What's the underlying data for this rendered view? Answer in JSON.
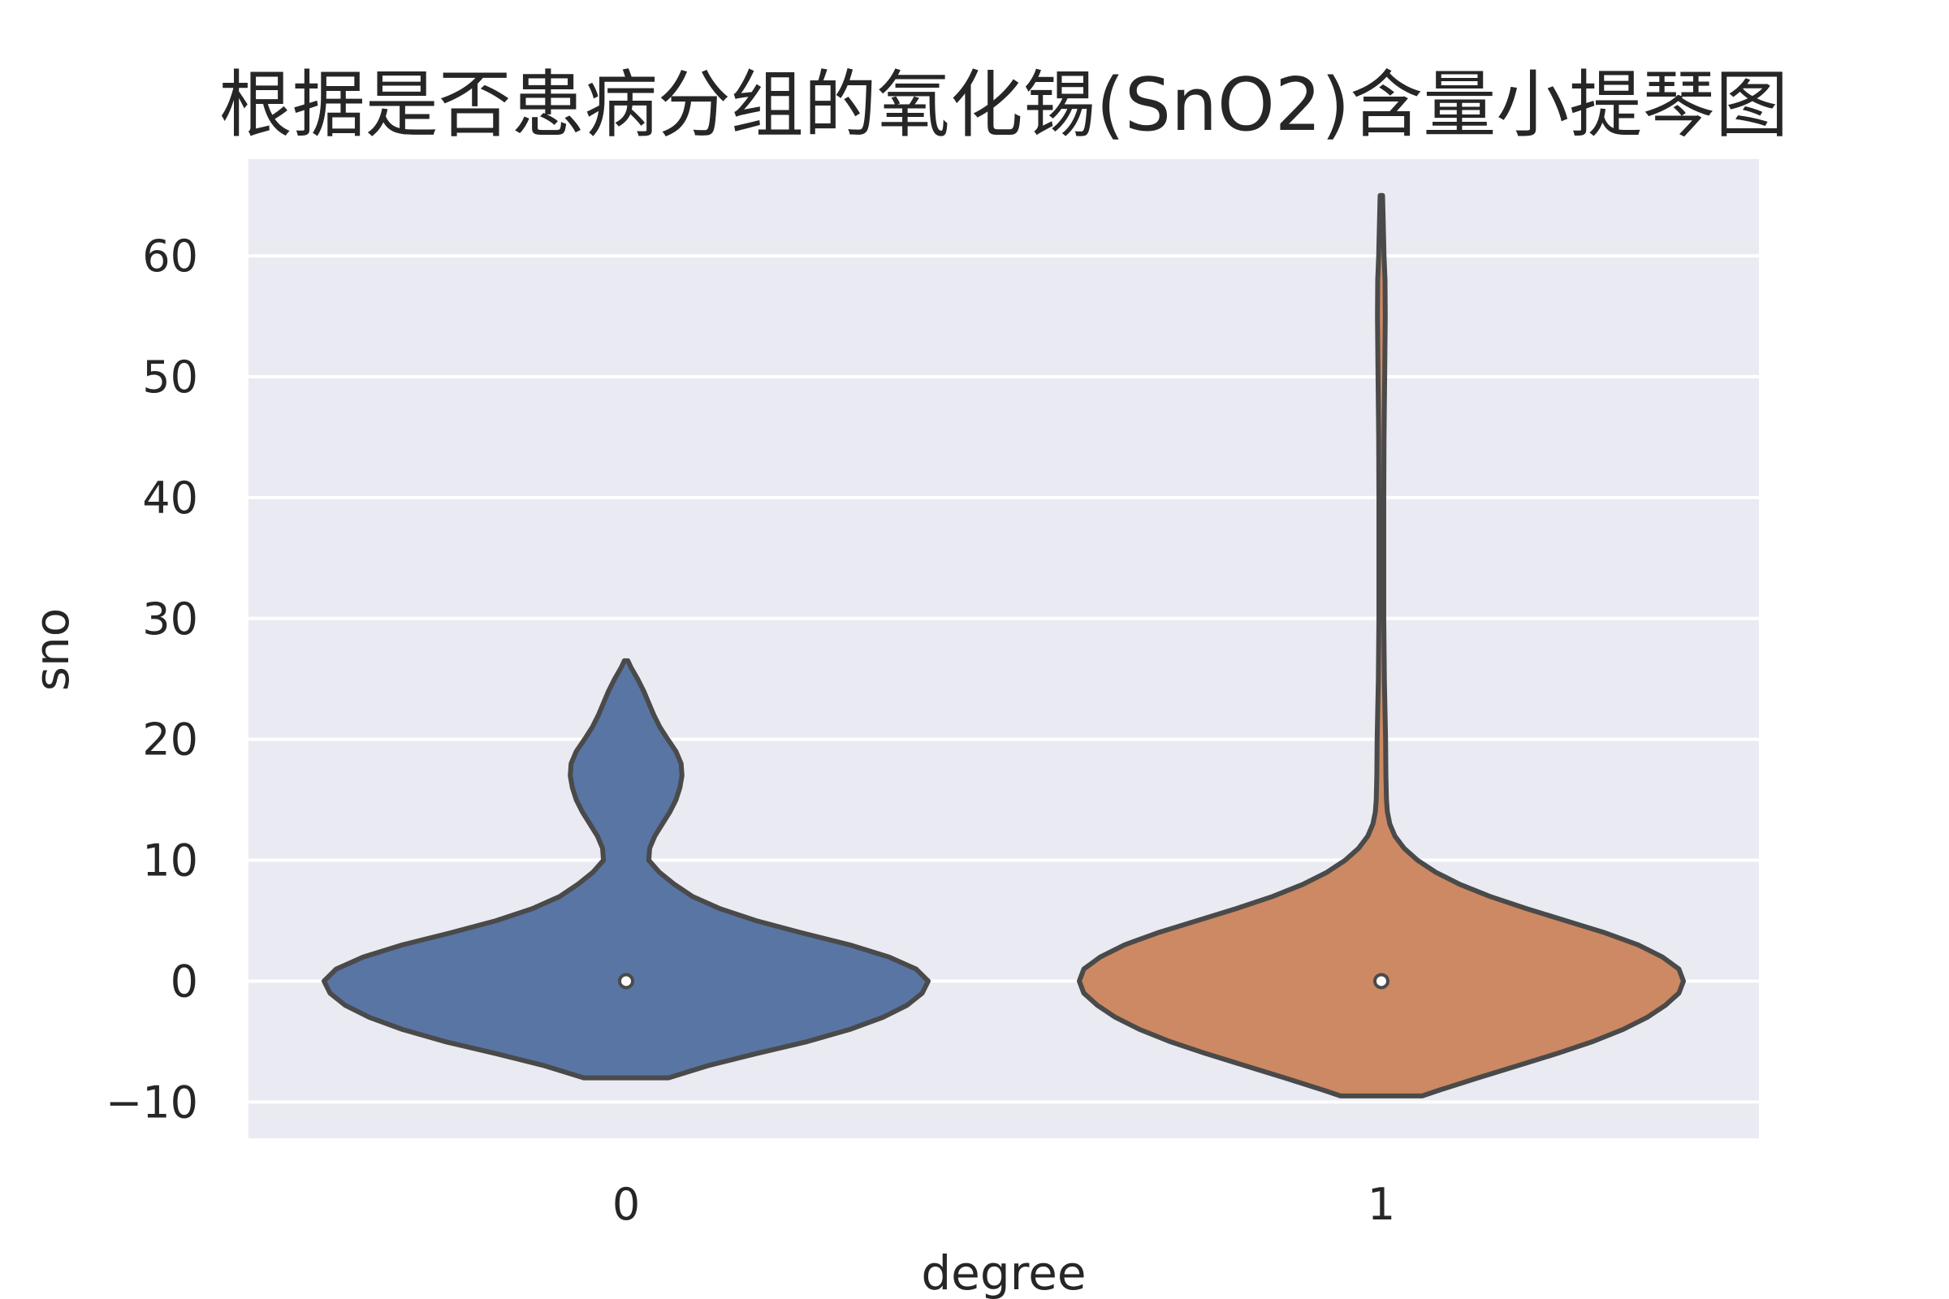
{
  "chart_data": {
    "type": "violin",
    "title": "根据是否患病分组的氧化锡(SnO2)含量小提琴图",
    "xlabel": "degree",
    "ylabel": "sno",
    "categories": [
      "0",
      "1"
    ],
    "ylim": [
      -13,
      68
    ],
    "yticks": [
      -10,
      0,
      10,
      20,
      30,
      40,
      50,
      60
    ],
    "ytick_labels": [
      "−10",
      "0",
      "10",
      "20",
      "30",
      "40",
      "50",
      "60"
    ],
    "grid": true,
    "colors": {
      "background": "#eaeaf2",
      "grid": "#ffffff",
      "outline": "#4a4a4a",
      "series": [
        "#5975a4",
        "#cc8963"
      ]
    },
    "violins": [
      {
        "category": "0",
        "median": 0,
        "min": -8,
        "max": 26.5,
        "density_profile": [
          [
            -8,
            0.14
          ],
          [
            -7,
            0.27
          ],
          [
            -6,
            0.43
          ],
          [
            -5,
            0.6
          ],
          [
            -4,
            0.74
          ],
          [
            -3,
            0.85
          ],
          [
            -2,
            0.93
          ],
          [
            -1,
            0.98
          ],
          [
            0,
            1.0
          ],
          [
            1,
            0.96
          ],
          [
            2,
            0.87
          ],
          [
            3,
            0.74
          ],
          [
            4,
            0.58
          ],
          [
            5,
            0.43
          ],
          [
            6,
            0.31
          ],
          [
            7,
            0.22
          ],
          [
            8,
            0.16
          ],
          [
            9,
            0.11
          ],
          [
            10,
            0.075
          ],
          [
            11,
            0.078
          ],
          [
            12,
            0.095
          ],
          [
            13,
            0.12
          ],
          [
            14,
            0.145
          ],
          [
            15,
            0.165
          ],
          [
            16,
            0.178
          ],
          [
            17,
            0.185
          ],
          [
            18,
            0.182
          ],
          [
            19,
            0.165
          ],
          [
            20,
            0.138
          ],
          [
            21,
            0.112
          ],
          [
            22,
            0.092
          ],
          [
            23,
            0.075
          ],
          [
            24,
            0.058
          ],
          [
            25,
            0.038
          ],
          [
            26,
            0.015
          ],
          [
            26.5,
            0.006
          ]
        ]
      },
      {
        "category": "1",
        "median": 0,
        "min": -9.5,
        "max": 65,
        "density_profile": [
          [
            -9.5,
            0.135
          ],
          [
            -9,
            0.195
          ],
          [
            -8,
            0.32
          ],
          [
            -7,
            0.45
          ],
          [
            -6,
            0.58
          ],
          [
            -5,
            0.7
          ],
          [
            -4,
            0.8
          ],
          [
            -3,
            0.88
          ],
          [
            -2,
            0.94
          ],
          [
            -1,
            0.985
          ],
          [
            0,
            1.0
          ],
          [
            1,
            0.985
          ],
          [
            2,
            0.93
          ],
          [
            3,
            0.85
          ],
          [
            4,
            0.74
          ],
          [
            5,
            0.61
          ],
          [
            6,
            0.48
          ],
          [
            7,
            0.36
          ],
          [
            8,
            0.26
          ],
          [
            9,
            0.18
          ],
          [
            10,
            0.12
          ],
          [
            11,
            0.075
          ],
          [
            12,
            0.045
          ],
          [
            13,
            0.028
          ],
          [
            14,
            0.02
          ],
          [
            15,
            0.017
          ],
          [
            17,
            0.015
          ],
          [
            20,
            0.014
          ],
          [
            25,
            0.01
          ],
          [
            30,
            0.008
          ],
          [
            35,
            0.008
          ],
          [
            40,
            0.008
          ],
          [
            45,
            0.009
          ],
          [
            50,
            0.011
          ],
          [
            55,
            0.013
          ],
          [
            58,
            0.012
          ],
          [
            60,
            0.009
          ],
          [
            62,
            0.007
          ],
          [
            64,
            0.005
          ],
          [
            65,
            0.004
          ]
        ]
      }
    ]
  }
}
